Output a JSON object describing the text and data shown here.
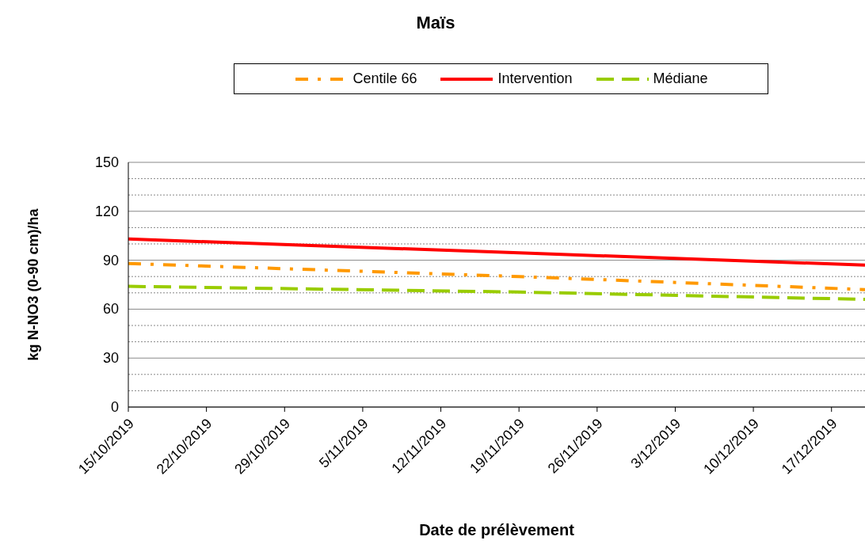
{
  "chart_data": {
    "type": "line",
    "title": "Maïs",
    "xlabel": "Date de prélèvement",
    "ylabel": "kg N-NO3 (0-90 cm)/ha",
    "series": [
      {
        "name": "Médiane",
        "color": "#99cc00",
        "line_style": "dashed",
        "x": [
          "2019-10-15",
          "2019-11-19",
          "2019-12-20"
        ],
        "values": [
          74,
          70.5,
          66
        ]
      },
      {
        "name": "Centile 66",
        "color": "#ff9900",
        "line_style": "dashdot",
        "x": [
          "2019-10-15",
          "2019-11-19",
          "2019-12-20"
        ],
        "values": [
          88,
          80,
          72
        ]
      },
      {
        "name": "Intervention",
        "color": "#ff0000",
        "line_style": "solid",
        "x": [
          "2019-10-15",
          "2019-11-19",
          "2019-12-20"
        ],
        "values": [
          103,
          94.5,
          87
        ]
      }
    ],
    "xlim": [
      "2019-10-15",
      "2019-12-20"
    ],
    "xticks": [
      {
        "value": "2019-10-15",
        "label": "15/10/2019"
      },
      {
        "value": "2019-10-22",
        "label": "22/10/2019"
      },
      {
        "value": "2019-10-29",
        "label": "29/10/2019"
      },
      {
        "value": "2019-11-05",
        "label": "5/11/2019"
      },
      {
        "value": "2019-11-12",
        "label": "12/11/2019"
      },
      {
        "value": "2019-11-19",
        "label": "19/11/2019"
      },
      {
        "value": "2019-11-26",
        "label": "26/11/2019"
      },
      {
        "value": "2019-12-03",
        "label": "3/12/2019"
      },
      {
        "value": "2019-12-10",
        "label": "10/12/2019"
      },
      {
        "value": "2019-12-17",
        "label": "17/12/2019"
      }
    ],
    "ylim": [
      0,
      150
    ],
    "yticks": [
      0,
      {
        "value": 10,
        "label": null
      },
      {
        "value": 20,
        "label": null
      },
      30,
      {
        "value": 40,
        "label": null
      },
      {
        "value": 50,
        "label": null
      },
      60,
      {
        "value": 70,
        "label": null
      },
      {
        "value": 80,
        "label": null
      },
      90,
      {
        "value": 100,
        "label": null
      },
      {
        "value": 110,
        "label": null
      },
      120,
      {
        "value": 130,
        "label": null
      },
      {
        "value": 140,
        "label": null
      },
      150
    ],
    "grid": "y",
    "legend": "top",
    "marker": "none"
  }
}
